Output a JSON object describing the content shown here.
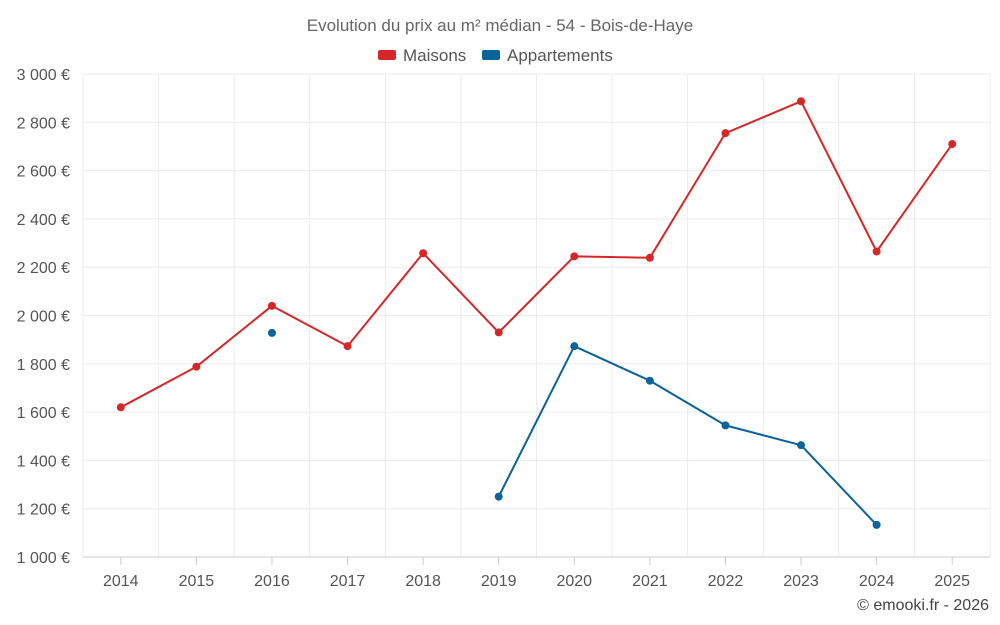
{
  "chart_data": {
    "type": "line",
    "title": "Evolution du prix au m² médian - 54 - Bois-de-Haye",
    "xlabel": "",
    "ylabel": "",
    "categories": [
      "2014",
      "2015",
      "2016",
      "2017",
      "2018",
      "2019",
      "2020",
      "2021",
      "2022",
      "2023",
      "2024",
      "2025"
    ],
    "ylim": [
      1000,
      3000
    ],
    "yticks": [
      1000,
      1200,
      1400,
      1600,
      1800,
      2000,
      2200,
      2400,
      2600,
      2800,
      3000
    ],
    "ytick_labels": [
      "1 000 €",
      "1 200 €",
      "1 400 €",
      "1 600 €",
      "1 800 €",
      "2 000 €",
      "2 200 €",
      "2 400 €",
      "2 600 €",
      "2 800 €",
      "3 000 €"
    ],
    "grid": true,
    "legend_position": "top-center",
    "series": [
      {
        "name": "Maisons",
        "color": "#d62728",
        "values": [
          1620,
          1788,
          2040,
          1873,
          2258,
          1930,
          2245,
          2239,
          2755,
          2887,
          2265,
          2710
        ]
      },
      {
        "name": "Appartements",
        "color": "#0a6399",
        "values": [
          null,
          null,
          1928,
          null,
          null,
          1250,
          1873,
          1730,
          1545,
          1463,
          1133,
          null
        ]
      }
    ]
  },
  "credit": "© emooki.fr - 2026"
}
